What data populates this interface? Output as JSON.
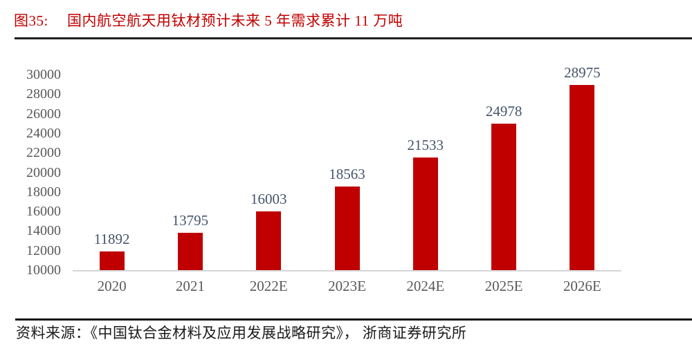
{
  "figure": {
    "label": "图35:",
    "title": "国内航空航天用钛材预计未来 5 年需求累计 11 万吨"
  },
  "chart_data": {
    "type": "bar",
    "title": "国内航空航天用钛材预计未来 5 年需求累计 11 万吨",
    "categories": [
      "2020",
      "2021",
      "2022E",
      "2023E",
      "2024E",
      "2025E",
      "2026E"
    ],
    "values": [
      11892,
      13795,
      16003,
      18563,
      21533,
      24978,
      28975
    ],
    "xlabel": "",
    "ylabel": "",
    "ylim": [
      10000,
      30000
    ],
    "ytick_step": 2000,
    "yticks": [
      10000,
      12000,
      14000,
      16000,
      18000,
      20000,
      22000,
      24000,
      26000,
      28000,
      30000
    ],
    "grid": false,
    "legend": "none",
    "data_labels": true,
    "bar_color": "#C00000"
  },
  "source": {
    "text": "资料来源：《中国钛合金材料及应用发展战略研究》， 浙商证券研究所"
  },
  "colors": {
    "accent_red": "#C00000",
    "axis_label_gray": "#595959",
    "data_label_slate": "#44546A",
    "rule_black": "#1f1f1f",
    "axis_line_gray": "#d6d6d6"
  }
}
